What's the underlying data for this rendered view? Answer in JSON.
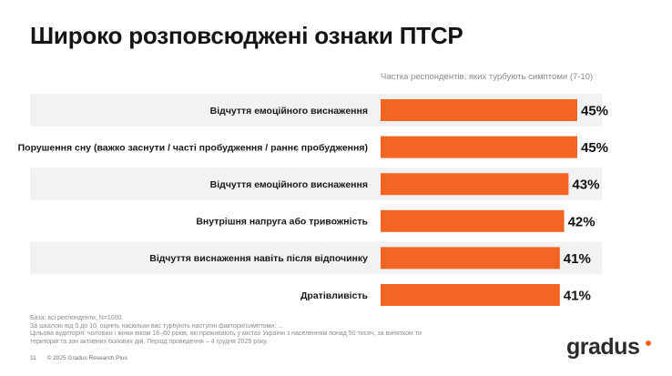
{
  "slide": {
    "title": "Широко розповсюджені ознаки ПТСР",
    "page_number": "11",
    "copyright": "© 2025 Gradus Research Plus",
    "logo_text": "gradus",
    "footnotes": [
      "База: всі респонденти, N=1000.",
      "За шкалою від 0 до 10, оцініть наскільки вас турбують наступні фактори/симптоми: ...",
      "Цільова аудиторія: чоловіки і жінки віком 18–60 років, які проживають у містах України з населенням понад 50 тисяч, за винятком тимчасово окупованих",
      "територій та зон активних бойових дій. Період проведення – 4 грудня 2025 року."
    ]
  },
  "colors": {
    "bar": "#f26522",
    "band": "#f2f2f2",
    "logo_dot": "#f26522"
  },
  "chart_data": {
    "type": "bar",
    "orientation": "horizontal",
    "subtitle": "Частка респондентів, яких турбують симптоми (7-10)",
    "categories": [
      "Відчуття емоційного виснаження",
      "Порушення сну (важко заснути / часті пробудження / раннє пробудження)",
      "Відчуття емоційного виснаження",
      "Внутрішня напруга або тривожність",
      "Відчуття виснаження навіть після відпочинку",
      "Дратівливість"
    ],
    "values": [
      45,
      45,
      43,
      42,
      41,
      41
    ],
    "value_labels": [
      "45%",
      "45%",
      "43%",
      "42%",
      "41%",
      "41%"
    ],
    "unit": "%",
    "banded_rows": true
  }
}
